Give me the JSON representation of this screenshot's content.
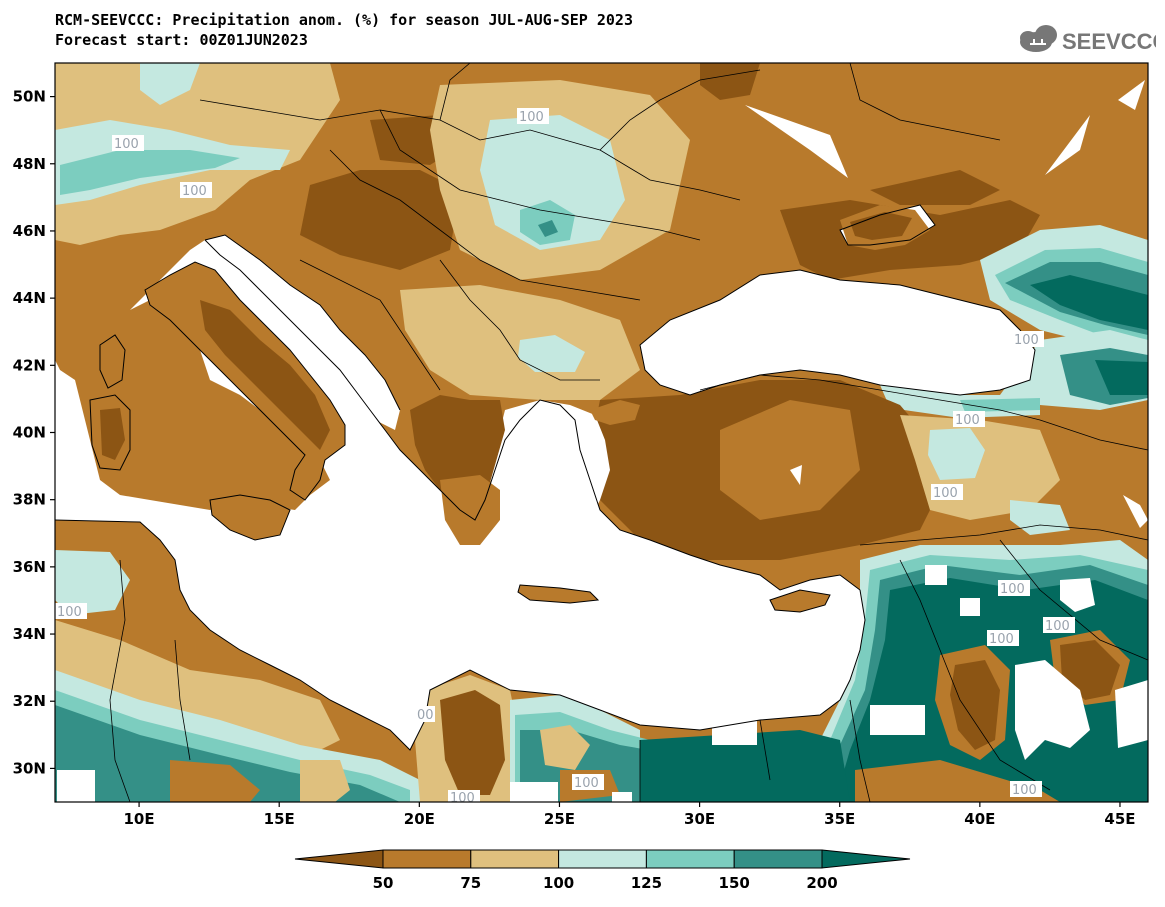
{
  "header": {
    "title_line1": "RCM-SEEVCCC: Precipitation anom. (%) for season JUL-AUG-SEP 2023",
    "title_line2": "Forecast start: 00Z01JUN2023",
    "logo_text": "SEEVCCC"
  },
  "map": {
    "lon_range": [
      7,
      46
    ],
    "lat_range": [
      29,
      51
    ],
    "lat_ticks": [
      "50N",
      "48N",
      "46N",
      "44N",
      "42N",
      "40N",
      "38N",
      "36N",
      "34N",
      "32N",
      "30N"
    ],
    "lon_ticks": [
      "10E",
      "15E",
      "20E",
      "25E",
      "30E",
      "35E",
      "40E",
      "45E"
    ],
    "contour_labels": [
      "100",
      "100",
      "100",
      "100",
      "100",
      "100",
      "100",
      "100",
      "100",
      "100",
      "100",
      "00",
      "100",
      "100"
    ]
  },
  "legend": {
    "levels": [
      "50",
      "75",
      "100",
      "125",
      "150",
      "200"
    ],
    "colors": {
      "c0": "#8c5514",
      "c1": "#b87a2c",
      "c2": "#dfc07e",
      "c3": "#c4e8e0",
      "c4": "#7ccdbf",
      "c5": "#349087",
      "c6": "#036a5e"
    }
  }
}
